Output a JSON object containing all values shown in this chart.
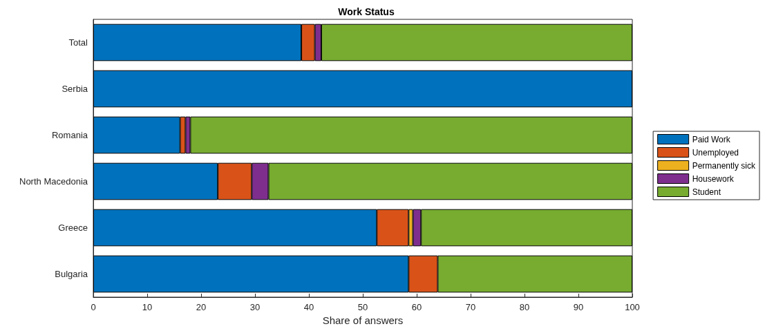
{
  "chart_data": {
    "type": "bar",
    "title": "Work Status",
    "xlabel": "Share of answers",
    "orientation": "horizontal",
    "stacked": true,
    "categories": [
      "Total",
      "Serbia",
      "Romania",
      "North Macedonia",
      "Greece",
      "Bulgaria"
    ],
    "series": [
      {
        "name": "Paid Work",
        "color": "#0072bd",
        "values": [
          38.6,
          100,
          16.1,
          23.1,
          52.6,
          58.5
        ]
      },
      {
        "name": "Unemployed",
        "color": "#d95319",
        "values": [
          2.5,
          0,
          1.0,
          6.3,
          5.9,
          5.4
        ]
      },
      {
        "name": "Permanently sick",
        "color": "#edb120",
        "values": [
          0,
          0,
          0,
          0,
          0.8,
          0
        ]
      },
      {
        "name": "Housework",
        "color": "#7e2f8e",
        "values": [
          1.2,
          0,
          0.9,
          3.1,
          1.5,
          0
        ]
      },
      {
        "name": "Student",
        "color": "#77ac30",
        "values": [
          57.7,
          0,
          82.0,
          67.5,
          39.2,
          36.1
        ]
      }
    ],
    "xlim": [
      0,
      100
    ],
    "xticks": [
      0,
      10,
      20,
      30,
      40,
      50,
      60,
      70,
      80,
      90,
      100
    ],
    "grid": false,
    "legend": "right"
  }
}
